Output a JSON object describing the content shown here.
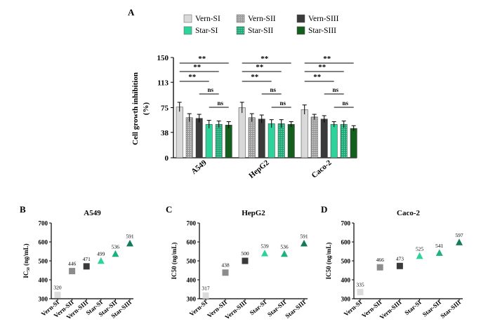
{
  "panelA": {
    "letter": "A",
    "ylabel_line1": "Cell growth inhibition",
    "ylabel_line2": "(%)",
    "yticks": [
      "0",
      "38",
      "75",
      "113",
      "150"
    ],
    "legend": [
      {
        "name": "Vern-SI",
        "color": "#d9d9d9",
        "pattern": "none"
      },
      {
        "name": "Vern-SII",
        "color": "#8c8c8c",
        "pattern": "dots"
      },
      {
        "name": "Vern-SIII",
        "color": "#3a3a3a",
        "pattern": "none"
      },
      {
        "name": "Star-SI",
        "color": "#2ed39b",
        "pattern": "none"
      },
      {
        "name": "Star-SII",
        "color": "#1fa877",
        "pattern": "dots"
      },
      {
        "name": "Star-SIII",
        "color": "#155f1e",
        "pattern": "none"
      }
    ],
    "significance": [
      "**",
      "**",
      "**",
      "ns",
      "ns"
    ]
  },
  "panelB": {
    "letter": "B"
  },
  "panelC": {
    "letter": "C"
  },
  "panelD": {
    "letter": "D"
  },
  "chart_data": [
    {
      "type": "bar",
      "title": "",
      "ylabel": "Cell growth inhibition (%)",
      "ylim": [
        0,
        150
      ],
      "categories": [
        "A549",
        "HepG2",
        "Caco-2"
      ],
      "series": [
        {
          "name": "Vern-SI",
          "values": [
            76,
            75,
            72
          ],
          "errors": [
            7,
            8,
            7
          ]
        },
        {
          "name": "Vern-SII",
          "values": [
            60,
            60,
            61
          ],
          "errors": [
            6,
            6,
            4
          ]
        },
        {
          "name": "Vern-SIII",
          "values": [
            59,
            58,
            58
          ],
          "errors": [
            6,
            6,
            5
          ]
        },
        {
          "name": "Star-SI",
          "values": [
            50,
            51,
            50
          ],
          "errors": [
            6,
            6,
            4
          ]
        },
        {
          "name": "Star-SII",
          "values": [
            50,
            51,
            50
          ],
          "errors": [
            5,
            6,
            5
          ]
        },
        {
          "name": "Star-SIII",
          "values": [
            49,
            50,
            44
          ],
          "errors": [
            5,
            4,
            4
          ]
        }
      ]
    },
    {
      "type": "scatter",
      "title": "A549",
      "ylabel": "IC₅₀ (ng/mL)",
      "ylim": [
        300,
        700
      ],
      "yticks": [
        "300",
        "400",
        "500",
        "600",
        "700"
      ],
      "categories": [
        "Vern-SI",
        "Vern-SII",
        "Vern-SIII",
        "Star-SI",
        "Star-SII",
        "Star-SIII"
      ],
      "values": [
        320,
        446,
        471,
        499,
        536,
        591
      ]
    },
    {
      "type": "scatter",
      "title": "HepG2",
      "ylabel": "IC50 (ng/mL)",
      "ylim": [
        300,
        700
      ],
      "yticks": [
        "300",
        "400",
        "500",
        "600",
        "700"
      ],
      "categories": [
        "Vern-SI",
        "Vern-SII",
        "Vern-SIII",
        "Star-SI",
        "Star-SII",
        "Star-SIII"
      ],
      "values": [
        317,
        438,
        500,
        539,
        536,
        591
      ]
    },
    {
      "type": "scatter",
      "title": "Caco-2",
      "ylabel": "IC50 (ng/mL)",
      "ylim": [
        300,
        700
      ],
      "yticks": [
        "300",
        "400",
        "500",
        "600",
        "700"
      ],
      "categories": [
        "Vern-SI",
        "Vern-SII",
        "Vern-SIII",
        "Star-SI",
        "Star-SII",
        "Star-SIII"
      ],
      "values": [
        335,
        466,
        473,
        525,
        541,
        597
      ]
    }
  ]
}
